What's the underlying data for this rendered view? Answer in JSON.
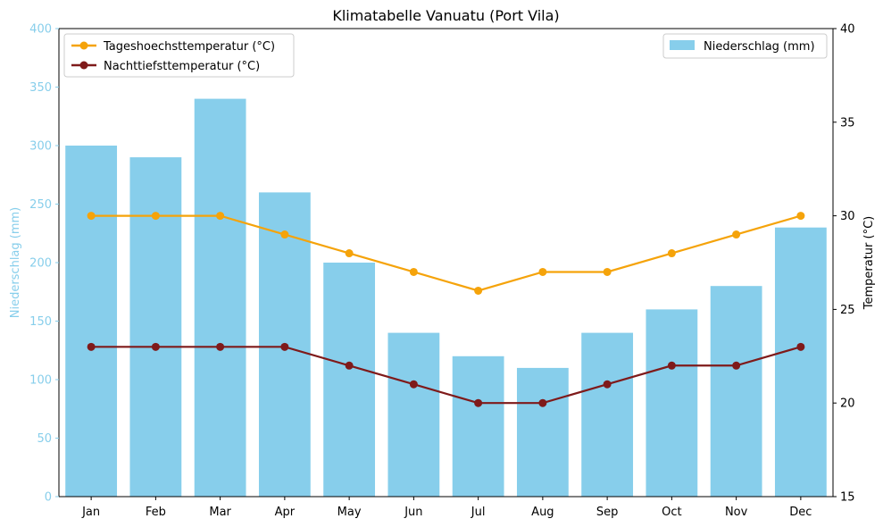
{
  "chart_data": {
    "type": "bar",
    "title": "Klimatabelle Vanuatu (Port Vila)",
    "categories": [
      "Jan",
      "Feb",
      "Mar",
      "Apr",
      "May",
      "Jun",
      "Jul",
      "Aug",
      "Sep",
      "Oct",
      "Nov",
      "Dec"
    ],
    "bar_series": {
      "name": "Niederschlag (mm)",
      "color": "#87ceeb",
      "values": [
        300,
        290,
        340,
        260,
        200,
        140,
        120,
        110,
        140,
        160,
        180,
        230
      ]
    },
    "line_series": [
      {
        "name": "Tageshoechsttemperatur (°C)",
        "color": "#f5a30a",
        "values": [
          30,
          30,
          30,
          29,
          28,
          27,
          26,
          27,
          27,
          28,
          29,
          30
        ]
      },
      {
        "name": "Nachttiefsttemperatur (°C)",
        "color": "#7f1a1a",
        "values": [
          23,
          23,
          23,
          23,
          22,
          21,
          20,
          20,
          21,
          22,
          22,
          23
        ]
      }
    ],
    "y_left": {
      "label": "Niederschlag (mm)",
      "color": "#87ceeb",
      "lim": [
        0,
        400
      ],
      "ticks": [
        0,
        50,
        100,
        150,
        200,
        250,
        300,
        350,
        400
      ]
    },
    "y_right": {
      "label": "Temperatur (°C)",
      "lim": [
        15,
        40
      ],
      "ticks": [
        15,
        20,
        25,
        30,
        35,
        40
      ]
    },
    "grid": false,
    "legend_lines_placement": "top-left",
    "legend_bars_placement": "top-right"
  }
}
